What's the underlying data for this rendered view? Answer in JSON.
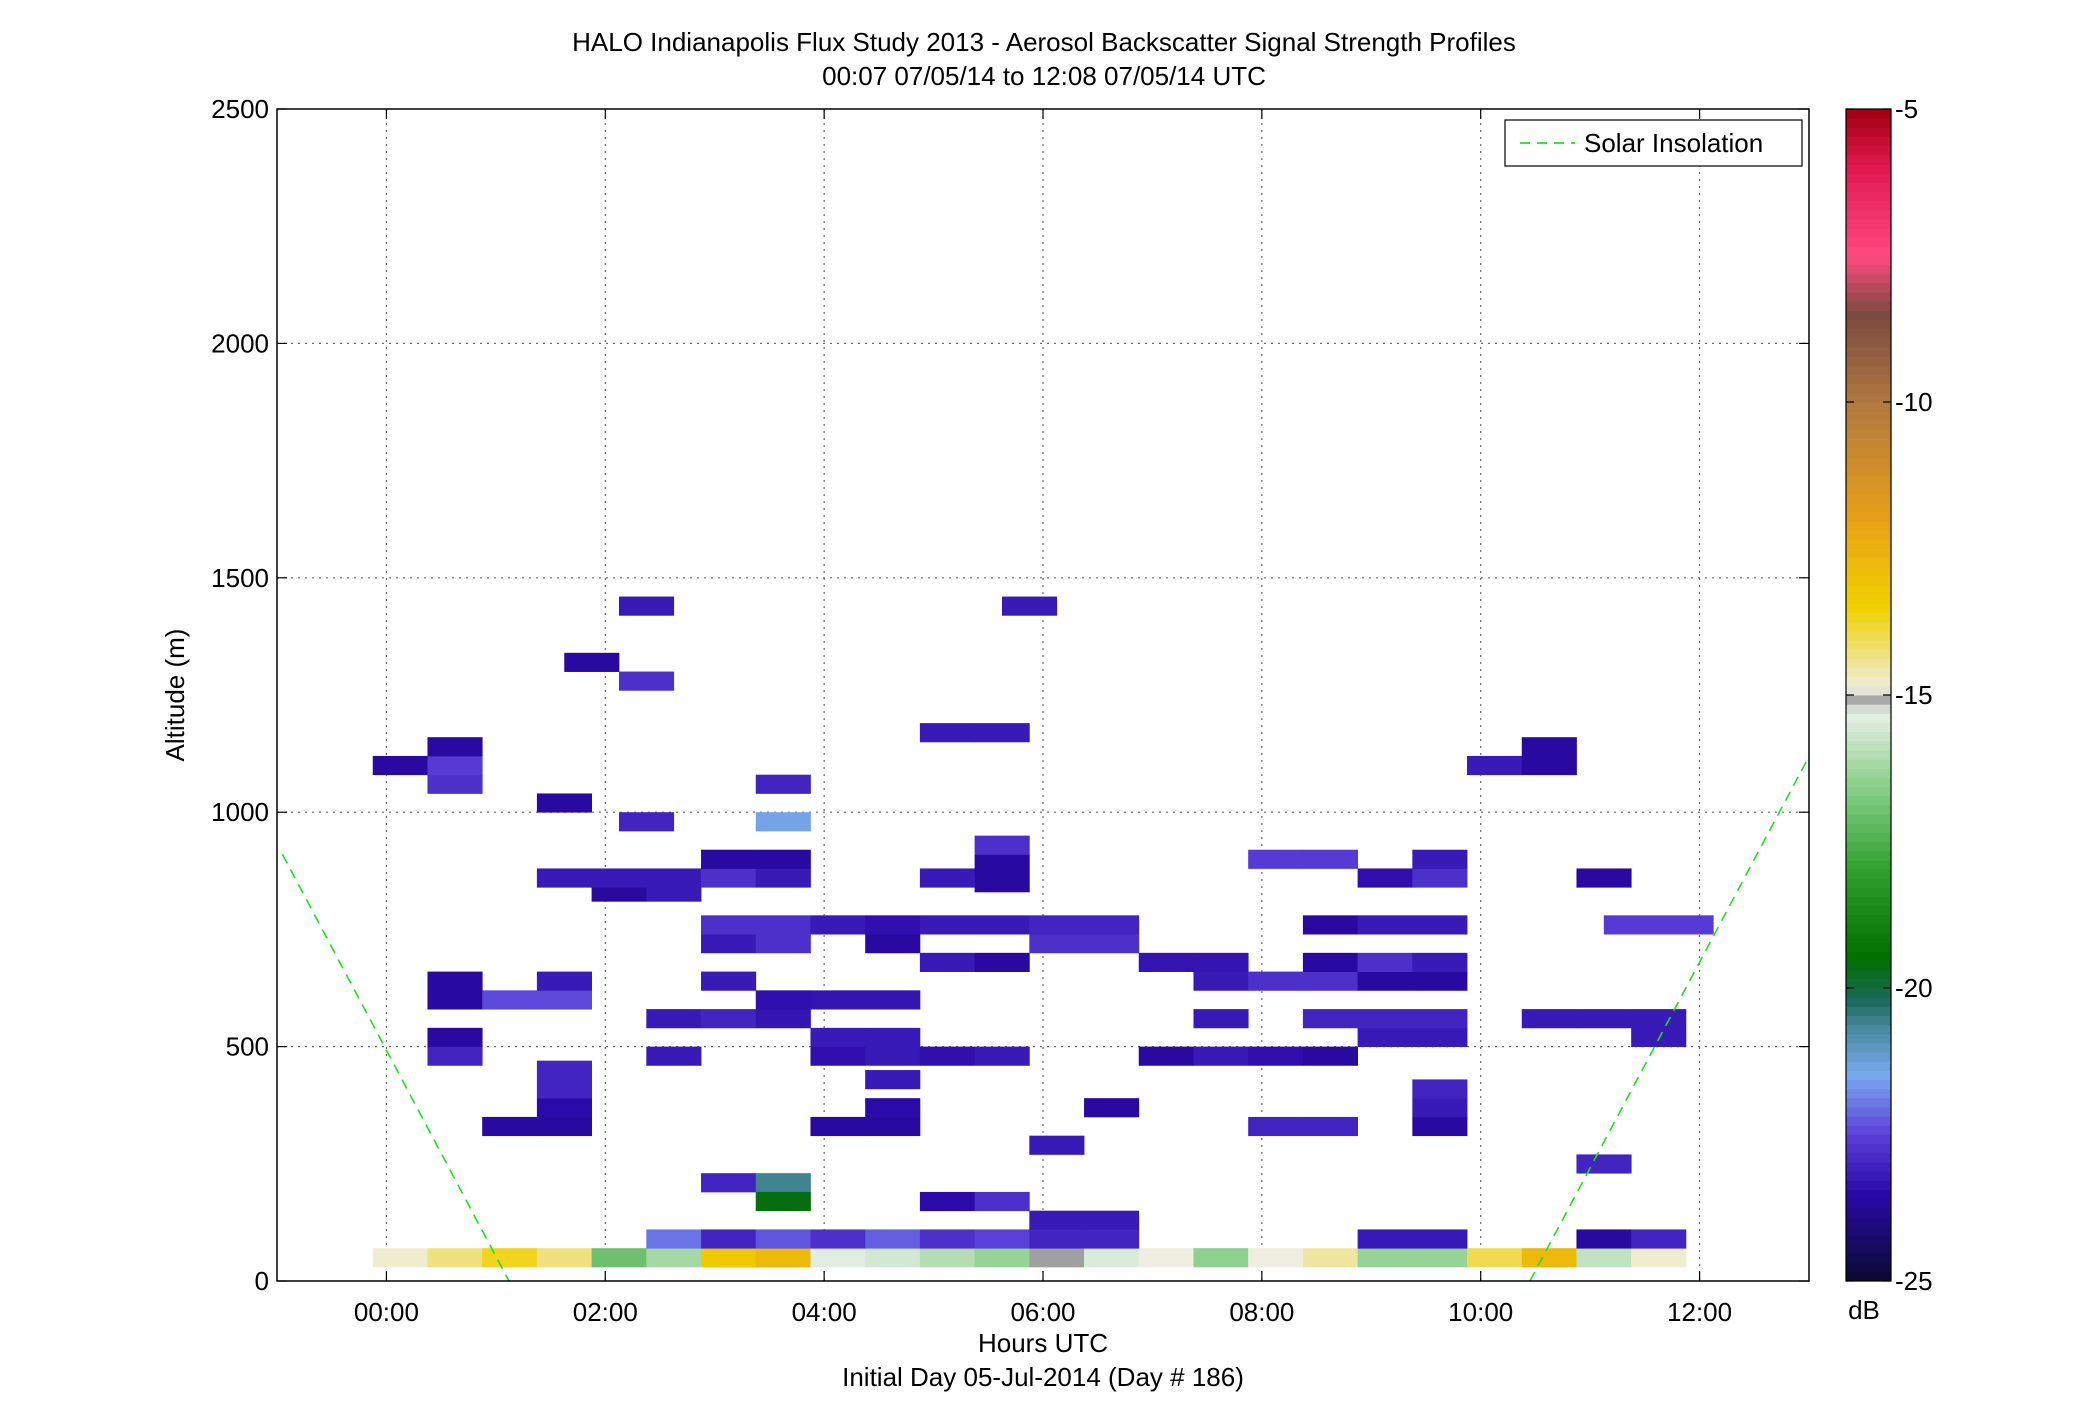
{
  "chart_data": {
    "type": "heatmap",
    "title": "HALO Indianapolis Flux Study 2013 - Aerosol Backscatter Signal Strength Profiles",
    "subtitle": "00:07 07/05/14 to 12:08 07/05/14  UTC",
    "xlabel": "Hours UTC",
    "xlabel2": "Initial Day 05-Jul-2014 (Day # 186)",
    "ylabel": "Altitude (m)",
    "xlim": [
      -1.0,
      13.0
    ],
    "ylim": [
      0,
      2500
    ],
    "x_ticks": [
      0,
      2,
      4,
      6,
      8,
      10,
      12
    ],
    "x_tick_labels": [
      "00:00",
      "02:00",
      "04:00",
      "06:00",
      "08:00",
      "10:00",
      "12:00"
    ],
    "y_ticks": [
      0,
      500,
      1000,
      1500,
      2000,
      2500
    ],
    "y_tick_labels": [
      "0",
      "500",
      "1000",
      "1500",
      "2000",
      "2500"
    ],
    "grid": true,
    "legend": {
      "placement": "top-right",
      "entries": [
        "Solar Insolation"
      ]
    },
    "colorbar": {
      "label": "dB",
      "range": [
        -25,
        -5
      ],
      "ticks": [
        -25,
        -20,
        -15,
        -10,
        -5
      ],
      "tick_labels": [
        "-25",
        "-20",
        "-15",
        "-10",
        "-5"
      ],
      "stops": [
        {
          "v": -25,
          "color": "#0a0a2e"
        },
        {
          "v": -23.5,
          "color": "#2a0aa8"
        },
        {
          "v": -22.5,
          "color": "#5a40d8"
        },
        {
          "v": -21.5,
          "color": "#7aa8f0"
        },
        {
          "v": -20.7,
          "color": "#4a8aa0"
        },
        {
          "v": -20.2,
          "color": "#1a6a5a"
        },
        {
          "v": -19.5,
          "color": "#006e00"
        },
        {
          "v": -18,
          "color": "#2ea02e"
        },
        {
          "v": -16.5,
          "color": "#8ed08e"
        },
        {
          "v": -15.3,
          "color": "#e8f0e8"
        },
        {
          "v": -15.05,
          "color": "#a0a0a0"
        },
        {
          "v": -14.9,
          "color": "#f0eee0"
        },
        {
          "v": -13.5,
          "color": "#f0d000"
        },
        {
          "v": -12,
          "color": "#e8a018"
        },
        {
          "v": -10,
          "color": "#b07840"
        },
        {
          "v": -8.5,
          "color": "#7a4a40"
        },
        {
          "v": -7.5,
          "color": "#ff4a80"
        },
        {
          "v": -6,
          "color": "#e01850"
        },
        {
          "v": -5,
          "color": "#a00010"
        }
      ]
    },
    "cell_size": {
      "dt_hours": 0.5,
      "dz_m": 40
    },
    "cells": [
      [
        0.125,
        50,
        -14.8
      ],
      [
        0.625,
        50,
        -14.3
      ],
      [
        1.125,
        50,
        -13.7
      ],
      [
        1.625,
        50,
        -14.3
      ],
      [
        2.125,
        50,
        -17.0
      ],
      [
        2.625,
        50,
        -16.2
      ],
      [
        3.125,
        50,
        -13.3
      ],
      [
        3.625,
        50,
        -12.8
      ],
      [
        4.125,
        50,
        -15.4
      ],
      [
        4.625,
        50,
        -15.6
      ],
      [
        5.125,
        50,
        -16.0
      ],
      [
        5.625,
        50,
        -16.4
      ],
      [
        6.125,
        50,
        -15.05
      ],
      [
        6.625,
        50,
        -15.5
      ],
      [
        7.125,
        50,
        -14.9
      ],
      [
        7.625,
        50,
        -16.5
      ],
      [
        8.125,
        50,
        -14.9
      ],
      [
        8.625,
        50,
        -14.5
      ],
      [
        9.125,
        50,
        -16.4
      ],
      [
        9.625,
        50,
        -16.4
      ],
      [
        10.125,
        50,
        -14.0
      ],
      [
        10.625,
        50,
        -12.8
      ],
      [
        11.125,
        50,
        -15.8
      ],
      [
        11.625,
        50,
        -14.8
      ],
      [
        2.625,
        90,
        -22.0
      ],
      [
        3.125,
        90,
        -23.0
      ],
      [
        3.625,
        90,
        -22.3
      ],
      [
        4.125,
        90,
        -22.8
      ],
      [
        4.625,
        90,
        -22.2
      ],
      [
        5.125,
        90,
        -22.8
      ],
      [
        5.625,
        90,
        -22.5
      ],
      [
        6.125,
        90,
        -23.0
      ],
      [
        6.625,
        90,
        -23.0
      ],
      [
        9.125,
        90,
        -23.2
      ],
      [
        9.625,
        90,
        -23.2
      ],
      [
        11.125,
        90,
        -23.6
      ],
      [
        11.625,
        90,
        -23.0
      ],
      [
        6.125,
        130,
        -23.2
      ],
      [
        6.625,
        130,
        -23.2
      ],
      [
        5.125,
        170,
        -23.5
      ],
      [
        5.625,
        170,
        -22.8
      ],
      [
        3.125,
        210,
        -23.0
      ],
      [
        3.625,
        210,
        -20.6
      ],
      [
        3.625,
        170,
        -19.6
      ],
      [
        11.125,
        250,
        -23.0
      ],
      [
        6.125,
        290,
        -23.2
      ],
      [
        1.125,
        330,
        -23.6
      ],
      [
        1.625,
        330,
        -23.6
      ],
      [
        4.125,
        330,
        -23.6
      ],
      [
        4.625,
        330,
        -23.6
      ],
      [
        8.125,
        330,
        -23.0
      ],
      [
        8.625,
        330,
        -23.0
      ],
      [
        9.625,
        330,
        -23.6
      ],
      [
        9.625,
        370,
        -23.2
      ],
      [
        1.625,
        370,
        -23.5
      ],
      [
        4.625,
        370,
        -23.5
      ],
      [
        6.625,
        370,
        -23.6
      ],
      [
        9.625,
        410,
        -23.0
      ],
      [
        1.625,
        410,
        -23.0
      ],
      [
        1.625,
        450,
        -23.0
      ],
      [
        4.625,
        430,
        -23.2
      ],
      [
        0.625,
        480,
        -23.0
      ],
      [
        2.625,
        480,
        -23.2
      ],
      [
        4.125,
        480,
        -23.4
      ],
      [
        4.625,
        480,
        -23.2
      ],
      [
        5.125,
        480,
        -23.4
      ],
      [
        5.625,
        480,
        -23.2
      ],
      [
        7.125,
        480,
        -23.6
      ],
      [
        7.625,
        480,
        -23.2
      ],
      [
        8.125,
        480,
        -23.4
      ],
      [
        8.625,
        480,
        -23.6
      ],
      [
        0.625,
        520,
        -23.6
      ],
      [
        4.125,
        520,
        -23.2
      ],
      [
        4.625,
        520,
        -23.2
      ],
      [
        9.125,
        520,
        -23.2
      ],
      [
        9.625,
        520,
        -23.2
      ],
      [
        11.625,
        520,
        -23.2
      ],
      [
        2.625,
        560,
        -23.2
      ],
      [
        3.125,
        560,
        -23.0
      ],
      [
        3.625,
        560,
        -23.3
      ],
      [
        7.625,
        560,
        -23.2
      ],
      [
        8.625,
        560,
        -23.0
      ],
      [
        9.125,
        560,
        -23.0
      ],
      [
        9.625,
        560,
        -23.0
      ],
      [
        10.625,
        560,
        -23.2
      ],
      [
        11.125,
        560,
        -23.2
      ],
      [
        11.625,
        560,
        -23.2
      ],
      [
        0.625,
        600,
        -23.6
      ],
      [
        1.125,
        600,
        -22.4
      ],
      [
        1.625,
        600,
        -22.4
      ],
      [
        3.625,
        600,
        -23.4
      ],
      [
        4.125,
        600,
        -23.3
      ],
      [
        4.625,
        600,
        -23.3
      ],
      [
        0.625,
        640,
        -23.6
      ],
      [
        1.625,
        640,
        -23.2
      ],
      [
        3.125,
        640,
        -23.2
      ],
      [
        7.625,
        640,
        -23.2
      ],
      [
        8.125,
        640,
        -22.8
      ],
      [
        8.625,
        640,
        -22.8
      ],
      [
        9.125,
        640,
        -23.6
      ],
      [
        9.625,
        640,
        -23.6
      ],
      [
        5.125,
        680,
        -23.2
      ],
      [
        5.625,
        680,
        -23.6
      ],
      [
        7.125,
        680,
        -23.3
      ],
      [
        7.625,
        680,
        -23.3
      ],
      [
        8.625,
        680,
        -23.6
      ],
      [
        9.125,
        680,
        -22.8
      ],
      [
        9.625,
        680,
        -23.2
      ],
      [
        3.125,
        720,
        -23.2
      ],
      [
        3.625,
        720,
        -22.8
      ],
      [
        4.625,
        720,
        -23.6
      ],
      [
        6.125,
        720,
        -22.8
      ],
      [
        6.625,
        720,
        -22.8
      ],
      [
        3.125,
        760,
        -22.8
      ],
      [
        3.625,
        760,
        -22.8
      ],
      [
        4.125,
        760,
        -23.2
      ],
      [
        4.625,
        760,
        -23.4
      ],
      [
        5.125,
        760,
        -23.2
      ],
      [
        5.625,
        760,
        -23.2
      ],
      [
        6.125,
        760,
        -23.0
      ],
      [
        6.625,
        760,
        -23.0
      ],
      [
        8.625,
        760,
        -23.6
      ],
      [
        9.125,
        760,
        -23.2
      ],
      [
        9.625,
        760,
        -23.2
      ],
      [
        11.375,
        760,
        -22.6
      ],
      [
        11.875,
        760,
        -22.6
      ],
      [
        2.125,
        830,
        -23.6
      ],
      [
        2.625,
        830,
        -23.2
      ],
      [
        5.625,
        850,
        -23.6
      ],
      [
        1.625,
        860,
        -23.2
      ],
      [
        2.125,
        860,
        -23.2
      ],
      [
        2.625,
        860,
        -23.2
      ],
      [
        3.125,
        860,
        -22.8
      ],
      [
        3.625,
        860,
        -23.2
      ],
      [
        5.125,
        860,
        -23.2
      ],
      [
        5.625,
        890,
        -23.6
      ],
      [
        9.125,
        860,
        -23.4
      ],
      [
        9.625,
        860,
        -22.8
      ],
      [
        11.125,
        860,
        -23.6
      ],
      [
        3.125,
        900,
        -23.6
      ],
      [
        3.625,
        900,
        -23.6
      ],
      [
        8.125,
        900,
        -22.6
      ],
      [
        8.625,
        900,
        -22.6
      ],
      [
        9.625,
        900,
        -23.2
      ],
      [
        5.625,
        930,
        -22.8
      ],
      [
        2.375,
        980,
        -23.0
      ],
      [
        3.625,
        980,
        -21.4
      ],
      [
        1.625,
        1020,
        -23.6
      ],
      [
        3.625,
        1060,
        -23.0
      ],
      [
        0.625,
        1060,
        -22.8
      ],
      [
        0.125,
        1100,
        -23.6
      ],
      [
        0.625,
        1100,
        -22.6
      ],
      [
        0.625,
        1140,
        -23.6
      ],
      [
        10.125,
        1100,
        -23.2
      ],
      [
        10.625,
        1100,
        -23.6
      ],
      [
        10.625,
        1140,
        -23.6
      ],
      [
        5.625,
        1170,
        -23.2
      ],
      [
        5.125,
        1170,
        -23.2
      ],
      [
        2.375,
        1280,
        -22.8
      ],
      [
        1.875,
        1320,
        -23.6
      ],
      [
        2.375,
        1440,
        -23.2
      ],
      [
        5.875,
        1440,
        -23.2
      ]
    ],
    "solar_insolation": {
      "style": "dashed",
      "color": "#22dd22",
      "left_branch": [
        [
          -0.95,
          910
        ],
        [
          1.12,
          0
        ]
      ],
      "right_branch": [
        [
          10.45,
          0
        ],
        [
          12.98,
          1110
        ]
      ]
    }
  }
}
